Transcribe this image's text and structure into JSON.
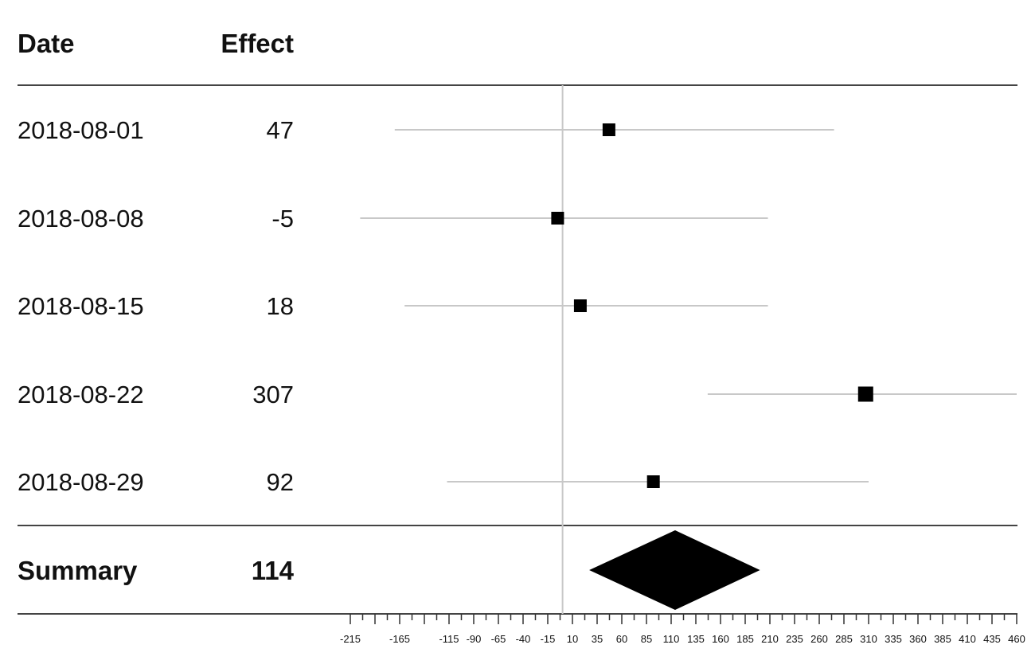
{
  "chart_data": {
    "type": "forest",
    "columns": {
      "date": "Date",
      "effect": "Effect"
    },
    "rows": [
      {
        "date": "2018-08-01",
        "effect": 47,
        "effect_label": "47",
        "lower": -170,
        "upper": 275
      },
      {
        "date": "2018-08-08",
        "effect": -5,
        "effect_label": "-5",
        "lower": -205,
        "upper": 208
      },
      {
        "date": "2018-08-15",
        "effect": 18,
        "effect_label": "18",
        "lower": -160,
        "upper": 208
      },
      {
        "date": "2018-08-22",
        "effect": 307,
        "effect_label": "307",
        "lower": 147,
        "upper": 460
      },
      {
        "date": "2018-08-29",
        "effect": 92,
        "effect_label": "92",
        "lower": -117,
        "upper": 310
      }
    ],
    "summary": {
      "label": "Summary",
      "effect": 114,
      "effect_label": "114",
      "lower": 27,
      "upper": 200
    },
    "reference_line": 0,
    "x_ticks": [
      -215,
      -165,
      -115,
      -90,
      -65,
      -40,
      -15,
      10,
      35,
      60,
      85,
      110,
      135,
      160,
      185,
      210,
      235,
      260,
      285,
      310,
      335,
      360,
      385,
      410,
      435,
      460
    ],
    "xlim": [
      -215,
      460
    ],
    "colors": {
      "ci_line": "#c8c8c8",
      "marker": "#000000",
      "rule": "#444444",
      "reference": "#c8c8c8"
    }
  }
}
